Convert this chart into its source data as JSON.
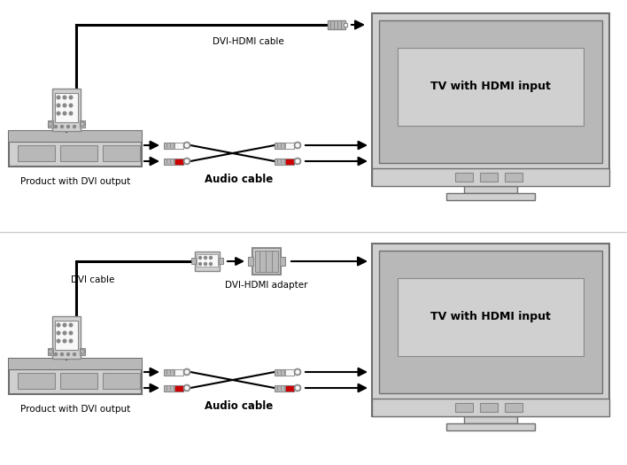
{
  "bg_color": "#ffffff",
  "labels": {
    "product_dvi": "Product with DVI output",
    "tv_hdmi": "TV with HDMI input",
    "dvi_hdmi_cable": "DVI-HDMI cable",
    "audio_cable": "Audio cable",
    "dvi_cable": "DVI cable",
    "dvi_hdmi_adapter": "DVI-HDMI adapter"
  },
  "gray_light": "#d0d0d0",
  "gray_mid": "#b8b8b8",
  "gray_dark": "#888888",
  "gray_border": "#707070",
  "red_color": "#cc0000",
  "black": "#000000",
  "white": "#f8f8f8",
  "label_fontsize": 7.5,
  "label_fontsize_bold": 8.5
}
